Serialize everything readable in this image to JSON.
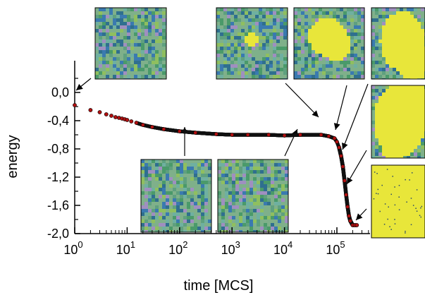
{
  "chart_data": {
    "type": "scatter",
    "title": "",
    "xlabel": "time [MCS]",
    "ylabel": "energy",
    "x_scale": "log",
    "xlim": [
      1,
      400000
    ],
    "ylim": [
      -2.0,
      0.0
    ],
    "x_ticks": [
      {
        "value": 1,
        "base": "10",
        "exp": "0"
      },
      {
        "value": 10,
        "base": "10",
        "exp": "1"
      },
      {
        "value": 100,
        "base": "10",
        "exp": "2"
      },
      {
        "value": 1000,
        "base": "10",
        "exp": "3"
      },
      {
        "value": 10000,
        "base": "10",
        "exp": "4"
      },
      {
        "value": 100000,
        "base": "10",
        "exp": "5"
      }
    ],
    "y_ticks": [
      {
        "value": 0.0,
        "label": "0,0"
      },
      {
        "value": -0.4,
        "label": "-0,4"
      },
      {
        "value": -0.8,
        "label": "-0,8"
      },
      {
        "value": -1.2,
        "label": "-1,2"
      },
      {
        "value": -1.6,
        "label": "-1,6"
      },
      {
        "value": -2.0,
        "label": "-2,0"
      }
    ],
    "grid": false,
    "marker_color": "#b01010",
    "marker_edge_color": "#000000",
    "inset_colors": {
      "noise": [
        "#4a9a6a",
        "#6fb0a0",
        "#2f6f8f",
        "#8fbf5f",
        "#3a7ab0",
        "#9f8fc0",
        "#5fa07f"
      ],
      "domain": "#e8e63a"
    },
    "series": [
      {
        "x": [
          1,
          2,
          3,
          4,
          5,
          6,
          7,
          8,
          9,
          10,
          12,
          15,
          20,
          30,
          50,
          100,
          200,
          500,
          1000,
          2000,
          5000,
          10000,
          20000,
          50000,
          70000,
          90000,
          100000,
          110000,
          120000,
          130000,
          140000,
          150000,
          160000,
          170000,
          180000,
          200000,
          220000,
          240000
        ],
        "y": [
          -0.18,
          -0.25,
          -0.28,
          -0.31,
          -0.33,
          -0.35,
          -0.36,
          -0.37,
          -0.38,
          -0.39,
          -0.41,
          -0.43,
          -0.46,
          -0.49,
          -0.52,
          -0.55,
          -0.57,
          -0.59,
          -0.6,
          -0.6,
          -0.6,
          -0.61,
          -0.6,
          -0.6,
          -0.62,
          -0.65,
          -0.7,
          -0.78,
          -0.9,
          -1.05,
          -1.25,
          -1.45,
          -1.62,
          -1.75,
          -1.82,
          -1.88,
          -1.88,
          -1.88
        ]
      }
    ]
  }
}
